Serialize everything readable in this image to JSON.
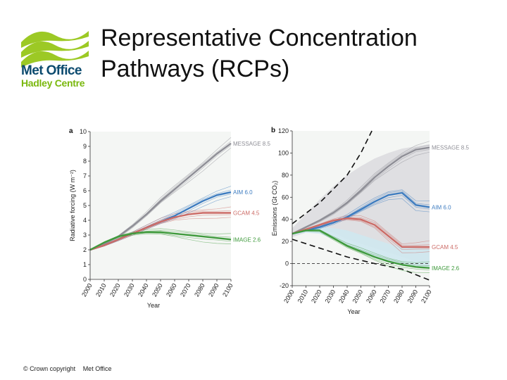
{
  "title": [
    "Representative Concentration",
    "Pathways (RCPs)"
  ],
  "logo": {
    "line1": "Met Office",
    "line2": "Hadley Centre"
  },
  "footer": {
    "copyright": "© Crown copyright",
    "organisation": "Met Office"
  },
  "colors": {
    "message": "#8e8e96",
    "aim": "#3d7cc0",
    "gcam": "#cc6b66",
    "image": "#3f9a3c",
    "logo_green": "#9cc925",
    "logo_blue": "#0b4a6e"
  },
  "chart_data": [
    {
      "type": "line",
      "panel_label": "a",
      "xlabel": "Year",
      "ylabel": "Radiative forcing (W m⁻²)",
      "xlim": [
        2000,
        2100
      ],
      "ylim": [
        0,
        10
      ],
      "x_ticks": [
        2000,
        2010,
        2020,
        2030,
        2040,
        2050,
        2060,
        2070,
        2080,
        2090,
        2100
      ],
      "y_ticks": [
        0,
        1,
        2,
        3,
        4,
        5,
        6,
        7,
        8,
        9,
        10
      ],
      "grid": false,
      "series": [
        {
          "name": "MESSAGE 8.5",
          "color": "#8e8e96",
          "x": [
            2000,
            2010,
            2020,
            2030,
            2040,
            2050,
            2060,
            2070,
            2080,
            2090,
            2100
          ],
          "y": [
            2.0,
            2.4,
            2.9,
            3.6,
            4.4,
            5.3,
            6.1,
            6.9,
            7.7,
            8.5,
            9.2
          ]
        },
        {
          "name": "AIM 6.0",
          "color": "#3d7cc0",
          "x": [
            2000,
            2010,
            2020,
            2030,
            2040,
            2050,
            2060,
            2070,
            2080,
            2090,
            2100
          ],
          "y": [
            2.0,
            2.3,
            2.7,
            3.1,
            3.5,
            3.9,
            4.3,
            4.8,
            5.3,
            5.7,
            5.9
          ]
        },
        {
          "name": "GCAM 4.5",
          "color": "#cc6b66",
          "x": [
            2000,
            2010,
            2020,
            2030,
            2040,
            2050,
            2060,
            2070,
            2080,
            2090,
            2100
          ],
          "y": [
            2.0,
            2.3,
            2.7,
            3.1,
            3.5,
            3.9,
            4.2,
            4.4,
            4.5,
            4.5,
            4.5
          ]
        },
        {
          "name": "IMAGE 2.6",
          "color": "#3f9a3c",
          "x": [
            2000,
            2010,
            2020,
            2030,
            2040,
            2050,
            2060,
            2070,
            2080,
            2090,
            2100
          ],
          "y": [
            2.0,
            2.5,
            2.9,
            3.1,
            3.2,
            3.2,
            3.1,
            3.0,
            2.9,
            2.8,
            2.7
          ]
        }
      ]
    },
    {
      "type": "line",
      "panel_label": "b",
      "xlabel": "Year",
      "ylabel": "Emissions (Gt CO₂)",
      "xlim": [
        2000,
        2100
      ],
      "ylim": [
        -20,
        120
      ],
      "x_ticks": [
        2000,
        2010,
        2020,
        2030,
        2040,
        2050,
        2060,
        2070,
        2080,
        2090,
        2100
      ],
      "y_ticks": [
        -20,
        0,
        20,
        40,
        60,
        80,
        100,
        120
      ],
      "grid": false,
      "series": [
        {
          "name": "MESSAGE 8.5",
          "color": "#8e8e96",
          "x": [
            2000,
            2010,
            2020,
            2030,
            2040,
            2050,
            2060,
            2070,
            2080,
            2090,
            2100
          ],
          "y": [
            27,
            33,
            39,
            46,
            55,
            66,
            78,
            88,
            97,
            103,
            105
          ]
        },
        {
          "name": "AIM 6.0",
          "color": "#3d7cc0",
          "x": [
            2000,
            2010,
            2020,
            2030,
            2040,
            2050,
            2060,
            2070,
            2080,
            2090,
            2100
          ],
          "y": [
            27,
            30,
            33,
            37,
            42,
            49,
            56,
            62,
            64,
            53,
            51
          ]
        },
        {
          "name": "GCAM 4.5",
          "color": "#cc6b66",
          "x": [
            2000,
            2010,
            2020,
            2030,
            2040,
            2050,
            2060,
            2070,
            2080,
            2090,
            2100
          ],
          "y": [
            27,
            31,
            35,
            39,
            41,
            40,
            35,
            25,
            15,
            15,
            15
          ]
        },
        {
          "name": "IMAGE 2.6",
          "color": "#3f9a3c",
          "x": [
            2000,
            2010,
            2020,
            2030,
            2040,
            2050,
            2060,
            2070,
            2080,
            2090,
            2100
          ],
          "y": [
            27,
            30,
            30,
            23,
            16,
            11,
            6,
            2,
            -1,
            -3,
            -4
          ]
        }
      ]
    }
  ]
}
